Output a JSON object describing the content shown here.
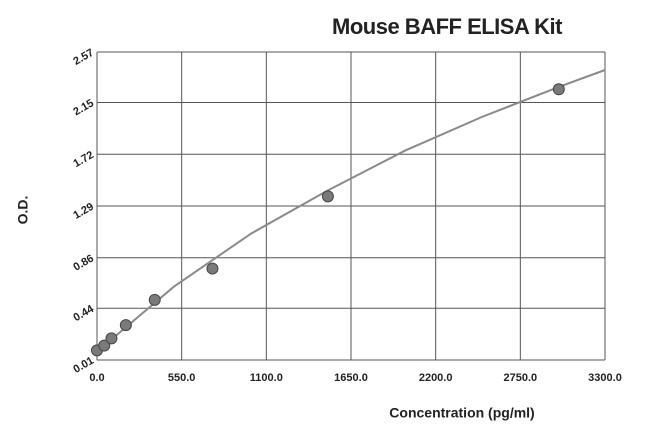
{
  "chart_data": {
    "type": "scatter",
    "title": "Mouse BAFF ELISA Kit",
    "x_label": "Concentration (pg/ml)",
    "y_label": "O.D.",
    "x": [
      0,
      46.88,
      93.75,
      187.5,
      375,
      750,
      1500,
      3000
    ],
    "values": [
      0.09,
      0.13,
      0.19,
      0.3,
      0.51,
      0.77,
      1.37,
      2.26
    ],
    "color": "#7a7a7a",
    "curve_x": [
      0,
      500,
      1000,
      1500,
      2000,
      2500,
      3000,
      3300
    ],
    "curve_values": [
      0.08,
      0.62,
      1.06,
      1.42,
      1.75,
      2.03,
      2.28,
      2.42
    ],
    "curve_color": "#8a8a8a",
    "xlim": [
      0,
      3300
    ],
    "xticks": [
      {
        "value": 0,
        "label": "0.0"
      },
      {
        "value": 550,
        "label": "550.0"
      },
      {
        "value": 1100,
        "label": "1100.0"
      },
      {
        "value": 1650,
        "label": "1650.0"
      },
      {
        "value": 2200,
        "label": "2200.0"
      },
      {
        "value": 2750,
        "label": "2750.0"
      },
      {
        "value": 3300,
        "label": "3300.0"
      }
    ],
    "ylim": [
      0.01,
      2.57
    ],
    "yticks": [
      0.01,
      0.44,
      0.86,
      1.29,
      1.72,
      2.15,
      2.57
    ],
    "grid": true
  }
}
